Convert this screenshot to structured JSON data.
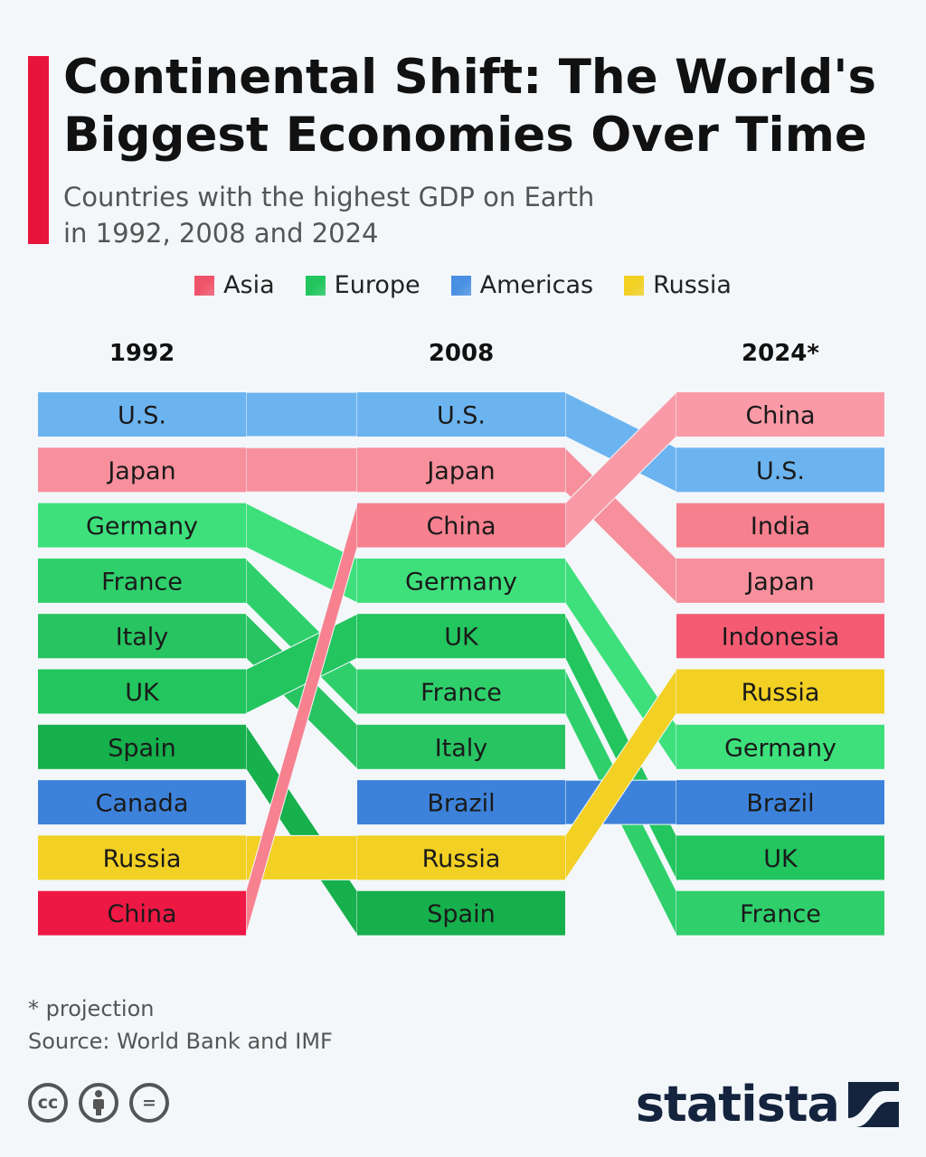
{
  "title": "Continental Shift: The World's Biggest Economies Over Time",
  "subtitle_line1": "Countries with the highest GDP on Earth",
  "subtitle_line2": "in 1992, 2008 and 2024",
  "legend": [
    {
      "label": "Asia",
      "color": "#f0546a"
    },
    {
      "label": "Europe",
      "color": "#22c55e"
    },
    {
      "label": "Americas",
      "color": "#4a90e2"
    },
    {
      "label": "Russia",
      "color": "#f2d024"
    }
  ],
  "footnote": "* projection",
  "source": "Source: World Bank and IMF",
  "cc_icons": [
    "cc",
    "by",
    "="
  ],
  "logo": "statista",
  "chart_data": {
    "type": "bump",
    "years": [
      "1992",
      "2008",
      "2024*"
    ],
    "rankings": [
      [
        "U.S.",
        "Japan",
        "Germany",
        "France",
        "Italy",
        "UK",
        "Spain",
        "Canada",
        "Russia",
        "China"
      ],
      [
        "U.S.",
        "Japan",
        "China",
        "Germany",
        "UK",
        "France",
        "Italy",
        "Brazil",
        "Russia",
        "Spain"
      ],
      [
        "China",
        "U.S.",
        "India",
        "Japan",
        "Indonesia",
        "Russia",
        "Germany",
        "Brazil",
        "UK",
        "France"
      ]
    ],
    "region_colors": {
      "U.S.": "#6cb4f0",
      "Canada": "#3d82da",
      "Brazil": "#3d82da",
      "Japan": "#f7909c",
      "India": "#f7808e",
      "Indonesia": "#f55c74",
      "China": "#f03a52",
      "Germany": "#3ee07c",
      "France": "#2fd06c",
      "Italy": "#28c462",
      "UK": "#22c55e",
      "Spain": "#16b04c",
      "Russia": "#f2d024"
    },
    "rank_colors_by_column": [
      {
        "China": "#ee1844"
      },
      {
        "China": "#f7818f"
      },
      {
        "China": "#f99aa6"
      }
    ]
  }
}
